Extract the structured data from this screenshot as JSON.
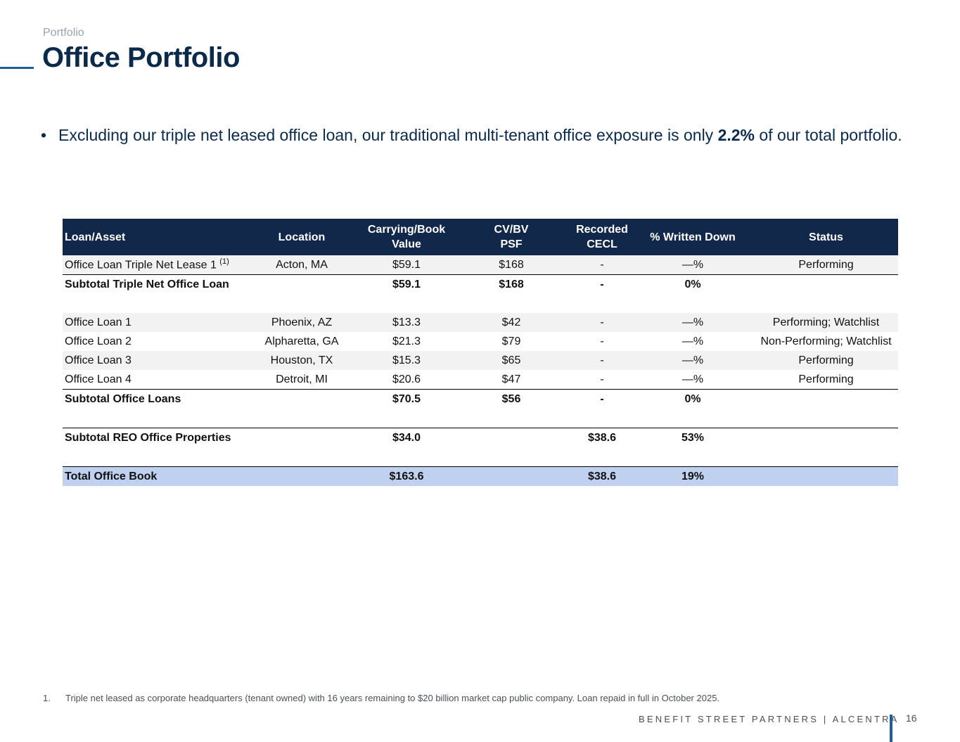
{
  "header": {
    "section": "Portfolio",
    "title": "Office Portfolio"
  },
  "bullet": {
    "text_before": "Excluding our triple net leased office loan, our traditional multi-tenant office exposure is only ",
    "highlight": "2.2%",
    "text_after": " of our total portfolio."
  },
  "table": {
    "headers": {
      "loan_asset": "Loan/Asset",
      "location": "Location",
      "carrying_line1": "Carrying/Book",
      "carrying_line2": "Value",
      "cvbv_line1": "CV/BV",
      "cvbv_line2": "PSF",
      "cecl_line1": "Recorded",
      "cecl_line2": "CECL",
      "written_down": "% Written Down",
      "status": "Status"
    },
    "triple_net": {
      "name": "Office Loan Triple Net Lease 1",
      "footnote_ref": "(1)",
      "location": "Acton, MA",
      "value": "$59.1",
      "psf": "$168",
      "cecl": "-",
      "written": "—%",
      "status": "Performing"
    },
    "subtotal_triple_net": {
      "name": "Subtotal Triple Net Office Loan",
      "value": "$59.1",
      "psf": "$168",
      "cecl": "-",
      "written": "0%"
    },
    "loans": [
      {
        "name": "Office Loan 1",
        "location": "Phoenix, AZ",
        "value": "$13.3",
        "psf": "$42",
        "cecl": "-",
        "written": "—%",
        "status": "Performing; Watchlist"
      },
      {
        "name": "Office Loan 2",
        "location": "Alpharetta, GA",
        "value": "$21.3",
        "psf": "$79",
        "cecl": "-",
        "written": "—%",
        "status": "Non-Performing; Watchlist"
      },
      {
        "name": "Office Loan 3",
        "location": "Houston, TX",
        "value": "$15.3",
        "psf": "$65",
        "cecl": "-",
        "written": "—%",
        "status": "Performing"
      },
      {
        "name": "Office Loan 4",
        "location": "Detroit, MI",
        "value": "$20.6",
        "psf": "$47",
        "cecl": "-",
        "written": "—%",
        "status": "Performing"
      }
    ],
    "subtotal_loans": {
      "name": "Subtotal Office Loans",
      "value": "$70.5",
      "psf": "$56",
      "cecl": "-",
      "written": "0%"
    },
    "subtotal_reo": {
      "name": "Subtotal REO Office Properties",
      "value": "$34.0",
      "cecl": "$38.6",
      "written": "53%"
    },
    "total": {
      "name": "Total Office Book",
      "value": "$163.6",
      "cecl": "$38.6",
      "written": "19%"
    }
  },
  "footnote": {
    "number": "1.",
    "text": "Triple net leased as corporate headquarters (tenant owned) with 16 years remaining to $20 billion market cap public company. Loan repaid in full in October 2025."
  },
  "footer": {
    "brand": "BENEFIT STREET PARTNERS | ALCENTRA",
    "page_number": "16"
  },
  "colors": {
    "header_bg": "#12284a",
    "title": "#0b2a4a",
    "accent": "#1f5d99",
    "total_row_bg": "#bfd1ef",
    "shaded_row_bg": "#f2f2f2"
  }
}
